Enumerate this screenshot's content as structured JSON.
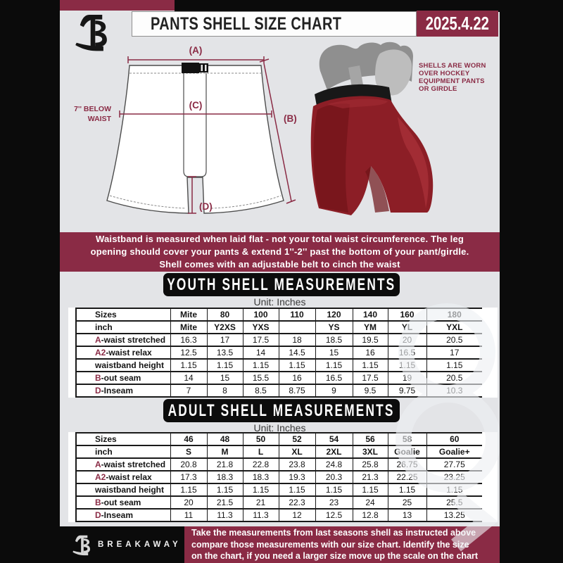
{
  "colors": {
    "maroon": "#8A2B45",
    "banner_black": "#0C0C0C",
    "page_bg": "#E3E4E7",
    "shell_red": "#8C1E26"
  },
  "header": {
    "title": "PANTS SHELL SIZE CHART",
    "date": "2025.4.22"
  },
  "diagram": {
    "label_a": "(A)",
    "label_b": "(B)",
    "label_c": "(C)",
    "label_d": "(D)",
    "waist_note_1": "7'' BELOW",
    "waist_note_2": "WAIST",
    "photo_note": [
      "SHELLS ARE WORN",
      "OVER HOCKEY",
      "EQUIPMENT PANTS",
      "OR GIRDLE"
    ]
  },
  "notice": {
    "lines": [
      "Waistband is measured when laid flat - not your total waist circumference. The leg",
      "opening should cover your pants & extend 1''-2'' past the bottom of your pant/girdle.",
      "Shell comes with an adjustable belt to cinch the waist"
    ]
  },
  "youth": {
    "banner": "YOUTH SHELL MEASUREMENTS",
    "unit": "Unit: Inches",
    "table": {
      "columns": [
        "Sizes",
        "Mite",
        "80",
        "100",
        "110",
        "120",
        "140",
        "160",
        "180"
      ],
      "rows": [
        {
          "prefix": "",
          "label": "inch",
          "bold": true,
          "cells": [
            "Mite",
            "Y2XS",
            "YXS",
            "",
            "YS",
            "YM",
            "YL",
            "YXL"
          ]
        },
        {
          "prefix": "A",
          "label": "-waist stretched",
          "cells": [
            "16.3",
            "17",
            "17.5",
            "18",
            "18.5",
            "19.5",
            "20",
            "20.5"
          ]
        },
        {
          "prefix": "A2",
          "label": "-waist relax",
          "cells": [
            "12.5",
            "13.5",
            "14",
            "14.5",
            "15",
            "16",
            "16.5",
            "17"
          ]
        },
        {
          "prefix": "",
          "label": "waistband height",
          "cells": [
            "1.15",
            "1.15",
            "1.15",
            "1.15",
            "1.15",
            "1.15",
            "1.15",
            "1.15"
          ]
        },
        {
          "prefix": "B",
          "label": "-out seam",
          "cells": [
            "14",
            "15",
            "15.5",
            "16",
            "16.5",
            "17.5",
            "19",
            "20.5"
          ]
        },
        {
          "prefix": "D",
          "label": "-Inseam",
          "cells": [
            "7",
            "8",
            "8.5",
            "8.75",
            "9",
            "9.5",
            "9.75",
            "10.3"
          ]
        }
      ]
    }
  },
  "adult": {
    "banner": "ADULT SHELL MEASUREMENTS",
    "unit": "Unit: Inches",
    "table": {
      "columns": [
        "Sizes",
        "46",
        "48",
        "50",
        "52",
        "54",
        "56",
        "58",
        "60"
      ],
      "rows": [
        {
          "prefix": "",
          "label": "inch",
          "bold": true,
          "cells": [
            "S",
            "M",
            "L",
            "XL",
            "2XL",
            "3XL",
            "Goalie",
            "Goalie+"
          ]
        },
        {
          "prefix": "A",
          "label": "-waist stretched",
          "cells": [
            "20.8",
            "21.8",
            "22.8",
            "23.8",
            "24.8",
            "25.8",
            "26.75",
            "27.75"
          ]
        },
        {
          "prefix": "A2",
          "label": "-waist relax",
          "cells": [
            "17.3",
            "18.3",
            "18.3",
            "19.3",
            "20.3",
            "21.3",
            "22.25",
            "23.25"
          ]
        },
        {
          "prefix": "",
          "label": "waistband height",
          "cells": [
            "1.15",
            "1.15",
            "1.15",
            "1.15",
            "1.15",
            "1.15",
            "1.15",
            "1.15"
          ]
        },
        {
          "prefix": "B",
          "label": "-out seam",
          "cells": [
            "20",
            "21.5",
            "21",
            "22.3",
            "23",
            "24",
            "25",
            "25.5"
          ]
        },
        {
          "prefix": "D",
          "label": "-Inseam",
          "cells": [
            "11",
            "11.3",
            "11.3",
            "12",
            "12.5",
            "12.8",
            "13",
            "13.25"
          ]
        }
      ]
    }
  },
  "footer": {
    "brand": "BREAKAWAY",
    "lines": [
      "Take the measurements from last seasons shell as instructed above",
      "compare those measurements  with our size chart. Identify the size",
      "on the chart, if you need a larger size move up the scale on the chart"
    ]
  }
}
